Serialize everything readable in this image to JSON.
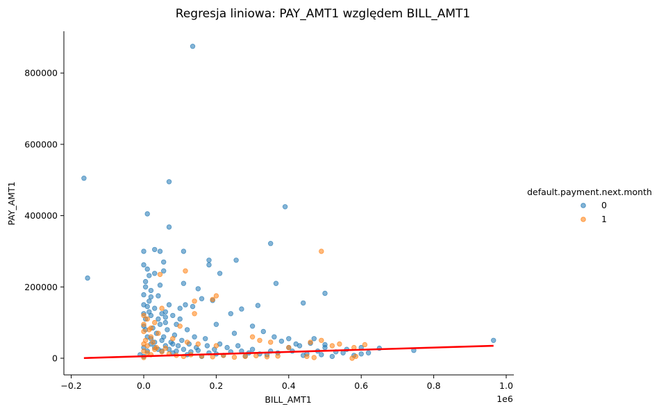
{
  "chart_data": {
    "type": "scatter",
    "title": "Regresja liniowa: PAY_AMT1 względem BILL_AMT1",
    "xlabel": "BILL_AMT1",
    "ylabel": "PAY_AMT1",
    "x_offset_label": "1e6",
    "xlim": [
      -0.19,
      1.02
    ],
    "ylim": [
      -45000,
      920000
    ],
    "x_ticks": [
      -0.2,
      0.0,
      0.2,
      0.4,
      0.6,
      0.8,
      1.0
    ],
    "x_tick_labels": [
      "−0.2",
      "0.0",
      "0.2",
      "0.4",
      "0.6",
      "0.8",
      "1.0"
    ],
    "y_ticks": [
      0,
      200000,
      400000,
      600000,
      800000
    ],
    "y_tick_labels": [
      "0",
      "200000",
      "400000",
      "600000",
      "800000"
    ],
    "grid": false,
    "legend": {
      "title": "default.payment.next.month",
      "placement": "right",
      "entries": [
        {
          "label": "0",
          "color": "#1f77b4"
        },
        {
          "label": "1",
          "color": "#ff7f0e"
        }
      ]
    },
    "regression_line": {
      "color": "#ff0000",
      "x": [
        -0.165,
        0.965
      ],
      "y": [
        500,
        35000
      ]
    },
    "series": [
      {
        "name": "0",
        "color": "#1f77b4",
        "points": [
          [
            0.135,
            875000
          ],
          [
            -0.165,
            505000
          ],
          [
            0.07,
            495000
          ],
          [
            -0.155,
            225000
          ],
          [
            0.01,
            405000
          ],
          [
            0.39,
            425000
          ],
          [
            0.07,
            368000
          ],
          [
            0.35,
            322000
          ],
          [
            0.0,
            300000
          ],
          [
            0.03,
            305000
          ],
          [
            0.045,
            300000
          ],
          [
            0.11,
            300000
          ],
          [
            0.18,
            275000
          ],
          [
            0.255,
            275000
          ],
          [
            0.18,
            262000
          ],
          [
            0.055,
            270000
          ],
          [
            0.0,
            262000
          ],
          [
            0.01,
            250000
          ],
          [
            0.055,
            245000
          ],
          [
            0.015,
            232000
          ],
          [
            0.03,
            238000
          ],
          [
            0.21,
            238000
          ],
          [
            0.365,
            210000
          ],
          [
            0.11,
            210000
          ],
          [
            0.045,
            205000
          ],
          [
            0.005,
            200000
          ],
          [
            0.15,
            195000
          ],
          [
            0.0,
            178000
          ],
          [
            0.02,
            172000
          ],
          [
            0.16,
            167000
          ],
          [
            0.19,
            162000
          ],
          [
            0.44,
            155000
          ],
          [
            0.5,
            182000
          ],
          [
            0.315,
            148000
          ],
          [
            0.115,
            150000
          ],
          [
            0.135,
            145000
          ],
          [
            0.27,
            138000
          ],
          [
            0.24,
            125000
          ],
          [
            0.06,
            130000
          ],
          [
            0.0,
            125000
          ],
          [
            0.1,
            110000
          ],
          [
            0.2,
            95000
          ],
          [
            0.3,
            90000
          ],
          [
            0.33,
            75000
          ],
          [
            0.25,
            70000
          ],
          [
            0.36,
            60000
          ],
          [
            0.4,
            55000
          ],
          [
            0.47,
            55000
          ],
          [
            0.38,
            48000
          ],
          [
            0.42,
            40000
          ],
          [
            0.5,
            30000
          ],
          [
            0.6,
            30000
          ],
          [
            0.65,
            28000
          ],
          [
            0.745,
            22000
          ],
          [
            0.965,
            50000
          ],
          [
            0.56,
            25000
          ],
          [
            0.55,
            15000
          ],
          [
            0.48,
            20000
          ],
          [
            0.27,
            20000
          ],
          [
            0.3,
            25000
          ],
          [
            0.35,
            20000
          ],
          [
            0.21,
            40000
          ],
          [
            0.17,
            55000
          ],
          [
            0.14,
            60000
          ],
          [
            0.12,
            80000
          ],
          [
            0.09,
            95000
          ],
          [
            0.06,
            100000
          ],
          [
            0.04,
            110000
          ],
          [
            0.03,
            140000
          ],
          [
            0.015,
            160000
          ],
          [
            0.02,
            190000
          ],
          [
            0.005,
            215000
          ],
          [
            0.04,
            175000
          ],
          [
            0.07,
            150000
          ],
          [
            0.08,
            120000
          ],
          [
            0.1,
            140000
          ],
          [
            0.005,
            80000
          ],
          [
            0.01,
            60000
          ],
          [
            0.02,
            40000
          ],
          [
            0.03,
            30000
          ],
          [
            0.05,
            20000
          ],
          [
            0.08,
            15000
          ],
          [
            0.12,
            10000
          ],
          [
            0.16,
            5000
          ],
          [
            0.22,
            8000
          ],
          [
            0.28,
            6000
          ],
          [
            0.34,
            10000
          ],
          [
            0.44,
            8000
          ],
          [
            0.52,
            5000
          ],
          [
            0.6,
            12000
          ],
          [
            0.0,
            5000
          ],
          [
            -0.01,
            10000
          ],
          [
            0.0,
            90000
          ],
          [
            0.005,
            110000
          ],
          [
            0.015,
            130000
          ],
          [
            0.025,
            85000
          ],
          [
            0.035,
            70000
          ],
          [
            0.045,
            95000
          ],
          [
            0.055,
            60000
          ],
          [
            0.065,
            80000
          ],
          [
            0.075,
            45000
          ],
          [
            0.085,
            65000
          ],
          [
            0.095,
            35000
          ],
          [
            0.105,
            50000
          ],
          [
            0.125,
            40000
          ],
          [
            0.145,
            30000
          ],
          [
            0.175,
            35000
          ],
          [
            0.195,
            25000
          ],
          [
            0.23,
            30000
          ],
          [
            0.26,
            35000
          ],
          [
            0.29,
            15000
          ],
          [
            0.32,
            12000
          ],
          [
            0.37,
            15000
          ],
          [
            0.41,
            20000
          ],
          [
            0.45,
            12000
          ],
          [
            0.49,
            10000
          ],
          [
            0.53,
            18000
          ],
          [
            0.58,
            8000
          ],
          [
            0.62,
            15000
          ],
          [
            0.0,
            30000
          ],
          [
            0.01,
            20000
          ],
          [
            0.02,
            55000
          ],
          [
            0.03,
            45000
          ],
          [
            0.04,
            25000
          ],
          [
            0.05,
            50000
          ],
          [
            0.06,
            35000
          ],
          [
            0.07,
            25000
          ],
          [
            0.08,
            40000
          ],
          [
            0.09,
            20000
          ],
          [
            0.11,
            25000
          ],
          [
            0.13,
            18000
          ],
          [
            0.15,
            22000
          ],
          [
            0.18,
            15000
          ],
          [
            0.2,
            12000
          ],
          [
            0.24,
            18000
          ],
          [
            0.0,
            150000
          ],
          [
            0.01,
            145000
          ],
          [
            0.02,
            120000
          ],
          [
            0.05,
            125000
          ],
          [
            0.06,
            115000
          ],
          [
            0.4,
            30000
          ],
          [
            0.43,
            35000
          ],
          [
            0.46,
            42000
          ],
          [
            0.5,
            38000
          ]
        ]
      },
      {
        "name": "1",
        "color": "#ff7f0e",
        "points": [
          [
            0.49,
            300000
          ],
          [
            0.115,
            245000
          ],
          [
            0.045,
            235000
          ],
          [
            0.14,
            160000
          ],
          [
            0.2,
            175000
          ],
          [
            0.19,
            165000
          ],
          [
            0.14,
            125000
          ],
          [
            0.05,
            140000
          ],
          [
            0.0,
            120000
          ],
          [
            0.03,
            100000
          ],
          [
            0.1,
            90000
          ],
          [
            0.0,
            75000
          ],
          [
            0.02,
            60000
          ],
          [
            0.04,
            70000
          ],
          [
            0.08,
            55000
          ],
          [
            0.12,
            45000
          ],
          [
            0.15,
            40000
          ],
          [
            0.2,
            35000
          ],
          [
            0.3,
            60000
          ],
          [
            0.32,
            50000
          ],
          [
            0.35,
            45000
          ],
          [
            0.4,
            30000
          ],
          [
            0.46,
            45000
          ],
          [
            0.49,
            50000
          ],
          [
            0.52,
            35000
          ],
          [
            0.54,
            40000
          ],
          [
            0.58,
            30000
          ],
          [
            0.61,
            38000
          ],
          [
            0.585,
            5000
          ],
          [
            0.575,
            0
          ],
          [
            0.47,
            2000
          ],
          [
            0.45,
            5000
          ],
          [
            0.0,
            20000
          ],
          [
            0.01,
            15000
          ],
          [
            0.02,
            10000
          ],
          [
            0.03,
            25000
          ],
          [
            0.05,
            18000
          ],
          [
            0.07,
            12000
          ],
          [
            0.09,
            8000
          ],
          [
            0.11,
            5000
          ],
          [
            0.13,
            10000
          ],
          [
            0.16,
            6000
          ],
          [
            0.19,
            4000
          ],
          [
            0.22,
            8000
          ],
          [
            0.25,
            3000
          ],
          [
            0.28,
            5000
          ],
          [
            0.31,
            7000
          ],
          [
            0.34,
            4000
          ],
          [
            0.37,
            6000
          ],
          [
            0.0,
            40000
          ],
          [
            0.005,
            50000
          ],
          [
            0.01,
            35000
          ],
          [
            0.015,
            80000
          ],
          [
            0.025,
            45000
          ],
          [
            0.035,
            30000
          ],
          [
            0.06,
            28000
          ],
          [
            0.0,
            2000
          ],
          [
            0.0,
            95000
          ],
          [
            0.01,
            110000
          ],
          [
            0.02,
            85000
          ]
        ]
      }
    ]
  }
}
